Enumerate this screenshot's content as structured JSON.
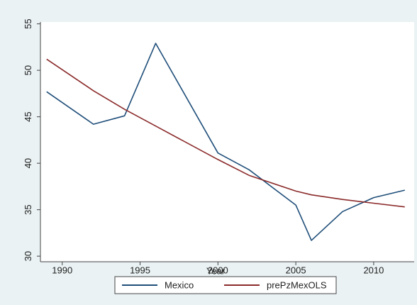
{
  "chart_data": {
    "type": "line",
    "xlabel": "Year",
    "ylabel": "",
    "xlim": [
      1988.6,
      2012.6
    ],
    "ylim": [
      29.4,
      55.2
    ],
    "xticks": [
      1990,
      1995,
      2000,
      2005,
      2010
    ],
    "yticks": [
      30,
      35,
      40,
      45,
      50,
      55
    ],
    "grid": false,
    "legend": "bottom",
    "series": [
      {
        "name": "Mexico",
        "color": "#1f4e79",
        "x": [
          1989,
          1992,
          1994,
          1996,
          2000,
          2002,
          2005,
          2006,
          2008,
          2010,
          2012
        ],
        "y": [
          47.7,
          44.2,
          45.1,
          52.9,
          41.1,
          39.3,
          35.5,
          31.7,
          34.8,
          36.3,
          37.1
        ]
      },
      {
        "name": "prePzMexOLS",
        "color": "#8b2a2a",
        "x": [
          1989,
          1992,
          1994,
          1996,
          2000,
          2002,
          2005,
          2006,
          2008,
          2010,
          2012
        ],
        "y": [
          51.2,
          47.8,
          45.8,
          44.0,
          40.4,
          38.7,
          37.0,
          36.6,
          36.1,
          35.7,
          35.3
        ]
      }
    ]
  }
}
